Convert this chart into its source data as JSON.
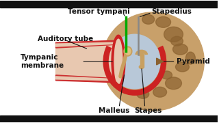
{
  "bg_color": "#ffffff",
  "labels": {
    "tensor_tympani": "Tensor tympani",
    "stapedius": "Stapedius",
    "auditory_tube": "Auditory tube",
    "tympanic_membrane": "Tympanic\nmembrane",
    "pyramid": "Pyramid",
    "malleus": "Malleus",
    "stapes": "Stapes"
  },
  "colors": {
    "bone": "#C8A06A",
    "bone_dark": "#8B6230",
    "bone_med": "#A87840",
    "tympanic_red": "#CC2222",
    "tympanic_inner": "#D44444",
    "middle_ear_fill": "#B8C8D8",
    "green_line": "#00AA00",
    "gray_line": "#888888",
    "black": "#111111",
    "ossicle": "#C8A060",
    "ossicle_light": "#DEC080",
    "ear_canal_fill": "#E8C8B0",
    "ear_canal_outer": "#CC3030"
  },
  "font_size": 7.5,
  "lw": 0.8
}
